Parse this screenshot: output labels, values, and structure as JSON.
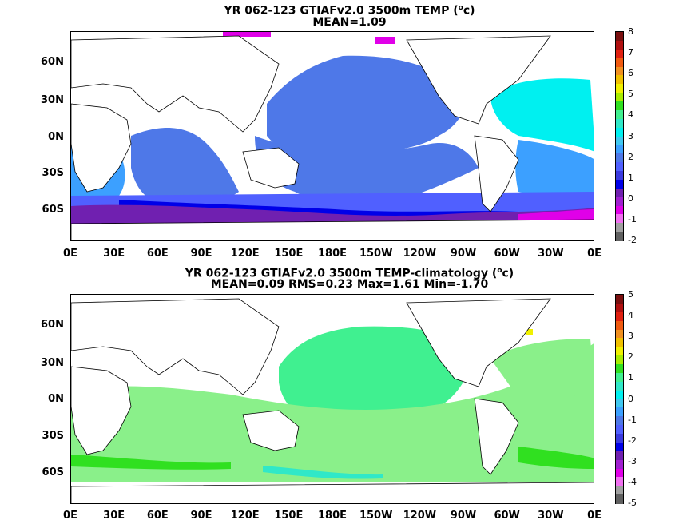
{
  "top": {
    "title_prefix": "YR 062-123 GTIAFv2.0 3500m TEMP (",
    "title_unit_sup": "o",
    "title_suffix": "c)",
    "stats": "MEAN=1.09",
    "colorbar": {
      "ticks": [
        "8",
        "7",
        "6",
        "5",
        "4",
        "3",
        "2",
        "1",
        "0",
        "-1",
        "-2"
      ],
      "colors": [
        "#7a0f0f",
        "#b01010",
        "#e02010",
        "#f05a10",
        "#f09020",
        "#f0c000",
        "#f0f000",
        "#a8ec00",
        "#30e020",
        "#40f090",
        "#30e8c8",
        "#00f0f0",
        "#40c8f0",
        "#3ca0ff",
        "#4e78e8",
        "#5060ff",
        "#3a3ae0",
        "#0000e8",
        "#7020b0",
        "#a020d0",
        "#e000e8",
        "#f070f0",
        "#a0a0a0",
        "#606060"
      ]
    },
    "regions": [
      {
        "name": "north-pacific",
        "color": "#4e78e8"
      },
      {
        "name": "atlantic-north",
        "color": "#00f0f0"
      },
      {
        "name": "atlantic-south",
        "color": "#3ca0ff"
      },
      {
        "name": "indian",
        "color": "#4e78e8"
      },
      {
        "name": "southern-deep",
        "color": "#7020b0"
      }
    ]
  },
  "bottom": {
    "title_prefix": "YR 062-123 GTIAFv2.0 3500m TEMP-climatology (",
    "title_unit_sup": "o",
    "title_suffix": "c)",
    "stats": "MEAN=0.09   RMS=0.23   Max=1.61   Min=-1.70",
    "colorbar": {
      "ticks": [
        "5",
        "4",
        "3",
        "2",
        "1",
        "0",
        "-1",
        "-2",
        "-3",
        "-4",
        "-5"
      ],
      "colors": [
        "#7a0f0f",
        "#b01010",
        "#e02010",
        "#f05a10",
        "#f09020",
        "#f0c000",
        "#f0f000",
        "#a8ec00",
        "#30e020",
        "#40f090",
        "#30e8c8",
        "#00f0f0",
        "#40c8f0",
        "#3ca0ff",
        "#4e78e8",
        "#5060ff",
        "#3a3ae0",
        "#0000e8",
        "#7020b0",
        "#a020d0",
        "#e000e8",
        "#f070f0",
        "#a0a0a0",
        "#606060"
      ]
    }
  },
  "lat_labels": [
    "60N",
    "30N",
    "0N",
    "30S",
    "60S"
  ],
  "lon_labels": [
    "0E",
    "30E",
    "60E",
    "90E",
    "120E",
    "150E",
    "180E",
    "150W",
    "120W",
    "90W",
    "60W",
    "30W",
    "0E"
  ]
}
